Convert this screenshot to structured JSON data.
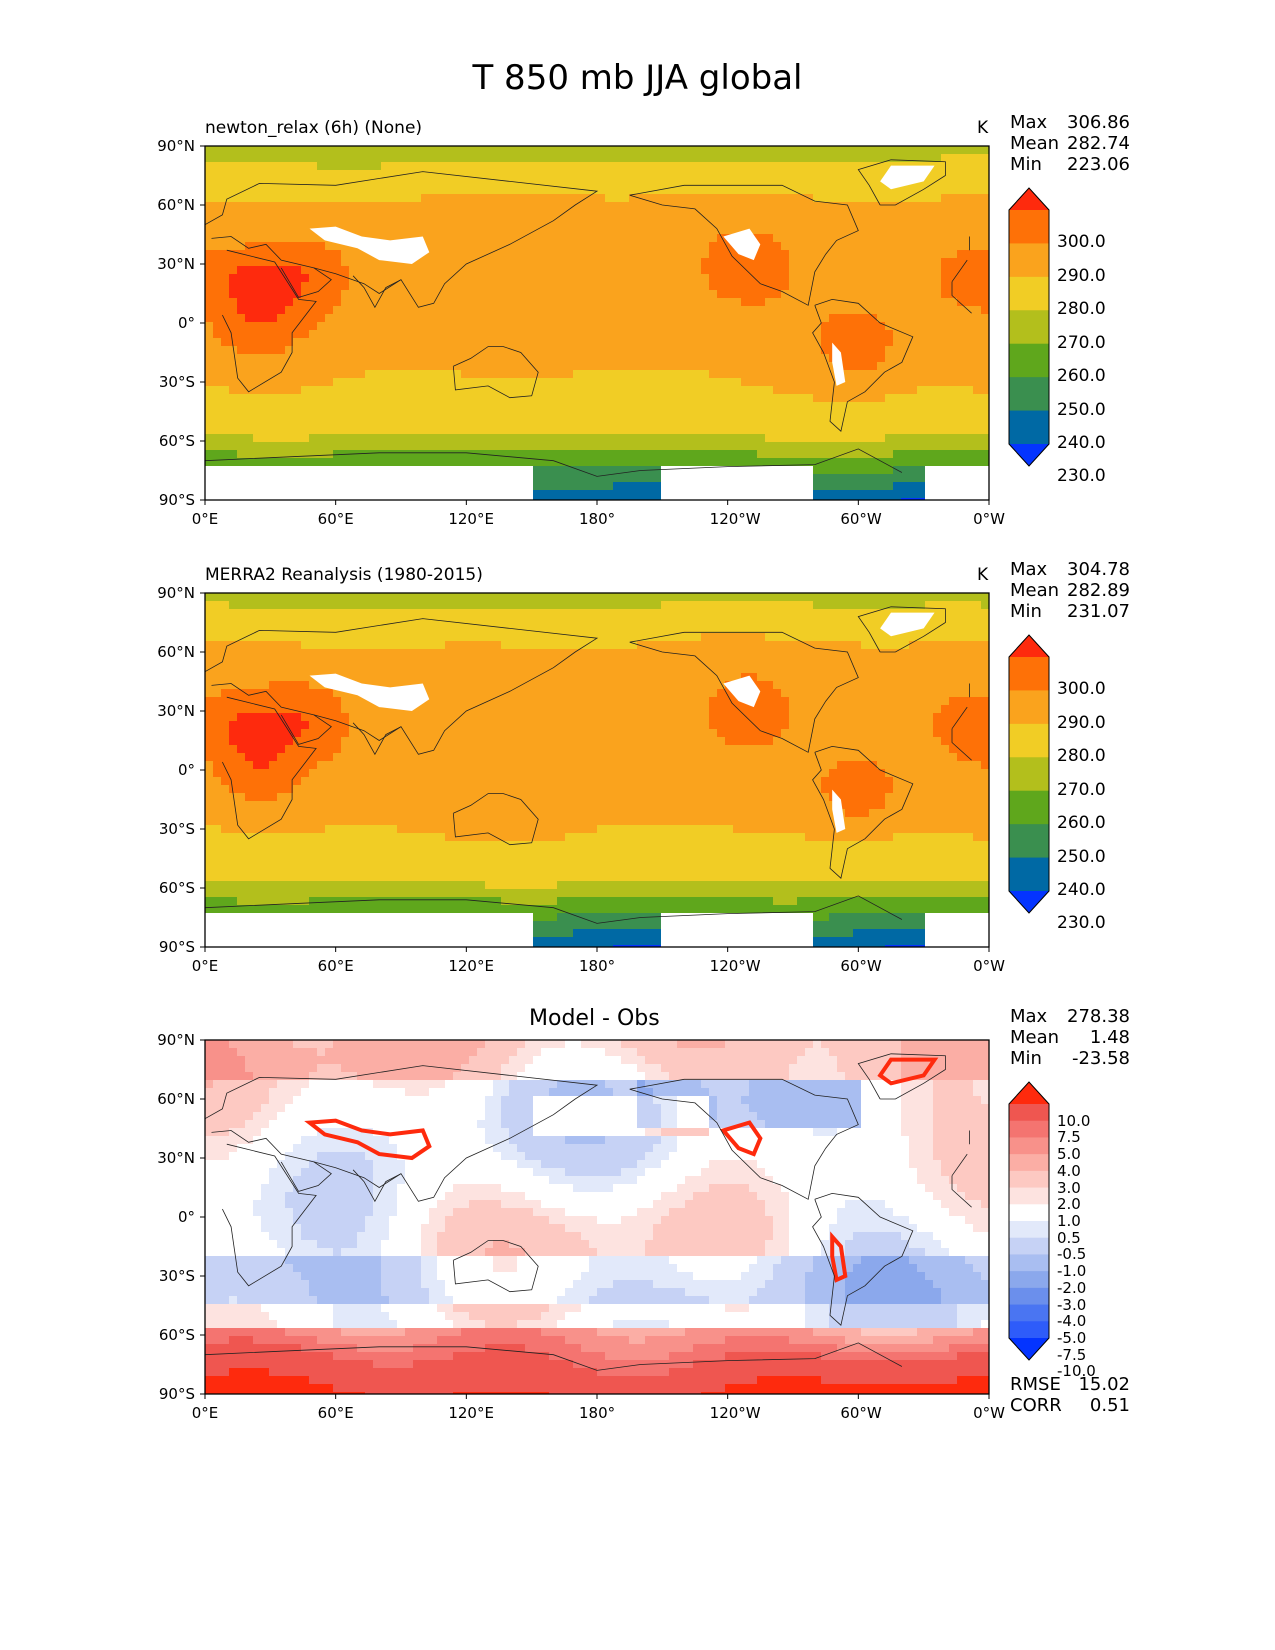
{
  "title": "T 850 mb JJA global",
  "colors": {
    "abs_bins": [
      "#0434ff",
      "#0069a4",
      "#3a8f4f",
      "#5fa71c",
      "#b3bf1c",
      "#f1cd25",
      "#faa31d",
      "#fe7107",
      "#fe2a0d"
    ],
    "diff_bins": [
      "#0434ff",
      "#2e5cfa",
      "#4a75f2",
      "#6b8fec",
      "#8ba8ec",
      "#a9bef1",
      "#c6d2f5",
      "#e2e9fa",
      "#ffffff",
      "#fde3e0",
      "#fdc9c2",
      "#fbaea5",
      "#f8918a",
      "#f47470",
      "#ef5650",
      "#fe2a0d"
    ],
    "land": "#ffffff",
    "coast": "#222222"
  },
  "chart_data": [
    {
      "type": "heatmap",
      "panel": "test",
      "left_title": "newton_relax (6h) (None)",
      "center_title": "",
      "units": "K",
      "stats": [
        {
          "label": "Max",
          "value": "306.86"
        },
        {
          "label": "Mean",
          "value": "282.74"
        },
        {
          "label": "Min",
          "value": "223.06"
        }
      ],
      "colorbar_ticks": [
        "300.0",
        "290.0",
        "280.0",
        "270.0",
        "260.0",
        "250.0",
        "240.0",
        "230.0"
      ],
      "x_ticks": [
        "0°E",
        "60°E",
        "120°E",
        "180°",
        "120°W",
        "60°W",
        "0°W"
      ],
      "y_ticks": [
        "90°N",
        "60°N",
        "30°N",
        "0°",
        "30°S",
        "60°S",
        "90°S"
      ]
    },
    {
      "type": "heatmap",
      "panel": "reference",
      "left_title": "MERRA2 Reanalysis (1980-2015)",
      "center_title": "",
      "units": "K",
      "stats": [
        {
          "label": "Max",
          "value": "304.78"
        },
        {
          "label": "Mean",
          "value": "282.89"
        },
        {
          "label": "Min",
          "value": "231.07"
        }
      ],
      "colorbar_ticks": [
        "300.0",
        "290.0",
        "280.0",
        "270.0",
        "260.0",
        "250.0",
        "240.0",
        "230.0"
      ],
      "x_ticks": [
        "0°E",
        "60°E",
        "120°E",
        "180°",
        "120°W",
        "60°W",
        "0°W"
      ],
      "y_ticks": [
        "90°N",
        "60°N",
        "30°N",
        "0°",
        "30°S",
        "60°S",
        "90°S"
      ]
    },
    {
      "type": "heatmap",
      "panel": "difference",
      "left_title": "",
      "center_title": "Model - Obs",
      "units": "",
      "stats": [
        {
          "label": "Max",
          "value": "278.38"
        },
        {
          "label": "Mean",
          "value": "1.48"
        },
        {
          "label": "Min",
          "value": "-23.58"
        }
      ],
      "colorbar_ticks": [
        "10.0",
        "7.5",
        "5.0",
        "4.0",
        "3.0",
        "2.0",
        "1.0",
        "0.5",
        "-0.5",
        "-1.0",
        "-2.0",
        "-3.0",
        "-4.0",
        "-5.0",
        "-7.5",
        "-10.0"
      ],
      "metrics": [
        {
          "label": "RMSE",
          "value": "15.02"
        },
        {
          "label": "CORR",
          "value": "0.51"
        }
      ],
      "x_ticks": [
        "0°E",
        "60°E",
        "120°E",
        "180°",
        "120°W",
        "60°W",
        "0°W"
      ],
      "y_ticks": [
        "90°N",
        "60°N",
        "30°N",
        "0°",
        "30°S",
        "60°S",
        "90°S"
      ]
    }
  ]
}
